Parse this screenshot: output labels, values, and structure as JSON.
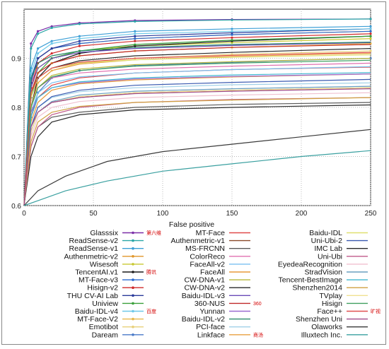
{
  "chart_data": {
    "type": "line",
    "title": "",
    "xlabel": "False positive",
    "ylabel": "",
    "xlim": [
      0,
      250
    ],
    "ylim": [
      0.6,
      1.0
    ],
    "x_ticks": [
      "0",
      "50",
      "100",
      "150",
      "200",
      "250"
    ],
    "y_ticks": [
      "0.6",
      "0.7",
      "0.8",
      "0.9"
    ],
    "grid": true,
    "legend_placement": "bottom (3 columns, below plot)",
    "series": [
      {
        "name": "Glasssix",
        "tag": "第六维",
        "color": "#7b2fa8",
        "x": [
          0,
          5,
          10,
          20,
          40,
          80,
          150,
          250
        ],
        "y": [
          0.6,
          0.93,
          0.955,
          0.965,
          0.972,
          0.977,
          0.979,
          0.98
        ]
      },
      {
        "name": "ReadSense-v2",
        "color": "#2aa6a6",
        "x": [
          0,
          5,
          10,
          20,
          40,
          80,
          150,
          250
        ],
        "y": [
          0.6,
          0.92,
          0.95,
          0.962,
          0.97,
          0.975,
          0.978,
          0.98
        ]
      },
      {
        "name": "ReadSense-v1",
        "color": "#3d9fd6",
        "x": [
          0,
          5,
          10,
          20,
          40,
          80,
          150,
          250
        ],
        "y": [
          0.6,
          0.88,
          0.92,
          0.935,
          0.945,
          0.955,
          0.96,
          0.965
        ]
      },
      {
        "name": "Authenmetric-v2",
        "color": "#e0962a",
        "x": [
          0,
          5,
          10,
          20,
          40,
          80,
          150,
          250
        ],
        "y": [
          0.6,
          0.86,
          0.9,
          0.92,
          0.93,
          0.94,
          0.948,
          0.955
        ]
      },
      {
        "name": "Wisesoft",
        "color": "#c8c832",
        "x": [
          0,
          5,
          10,
          20,
          40,
          80,
          150,
          250
        ],
        "y": [
          0.6,
          0.84,
          0.88,
          0.9,
          0.915,
          0.925,
          0.932,
          0.94
        ]
      },
      {
        "name": "TencentAI.v1",
        "tag": "腾讯",
        "color": "#1a1a1a",
        "x": [
          0,
          5,
          10,
          20,
          40,
          80,
          150,
          250
        ],
        "y": [
          0.6,
          0.8,
          0.86,
          0.89,
          0.91,
          0.925,
          0.935,
          0.945
        ]
      },
      {
        "name": "MT-Face-v3",
        "color": "#2a6ad0",
        "x": [
          0,
          5,
          10,
          20,
          40,
          80,
          150,
          250
        ],
        "y": [
          0.6,
          0.86,
          0.9,
          0.92,
          0.93,
          0.94,
          0.948,
          0.955
        ]
      },
      {
        "name": "Hisign-v2",
        "color": "#d02a2a",
        "x": [
          0,
          5,
          10,
          20,
          40,
          80,
          150,
          250
        ],
        "y": [
          0.6,
          0.84,
          0.89,
          0.91,
          0.925,
          0.935,
          0.942,
          0.95
        ]
      },
      {
        "name": "THU CV-AI Lab",
        "color": "#2a3a9a",
        "x": [
          0,
          5,
          10,
          20,
          40,
          80,
          150,
          250
        ],
        "y": [
          0.6,
          0.85,
          0.9,
          0.92,
          0.935,
          0.945,
          0.952,
          0.96
        ]
      },
      {
        "name": "Uniview",
        "color": "#3aa03a",
        "x": [
          0,
          5,
          10,
          20,
          40,
          80,
          150,
          250
        ],
        "y": [
          0.6,
          0.82,
          0.87,
          0.9,
          0.915,
          0.928,
          0.937,
          0.945
        ]
      },
      {
        "name": "Baidu-IDL-v4",
        "tag": "百度",
        "color": "#6ec8e8",
        "x": [
          0,
          5,
          10,
          20,
          40,
          80,
          150,
          250
        ],
        "y": [
          0.6,
          0.87,
          0.91,
          0.93,
          0.94,
          0.95,
          0.955,
          0.96
        ]
      },
      {
        "name": "MT-Face-V2",
        "color": "#e8b84a",
        "x": [
          0,
          5,
          10,
          20,
          40,
          80,
          150,
          250
        ],
        "y": [
          0.6,
          0.83,
          0.87,
          0.89,
          0.905,
          0.915,
          0.922,
          0.93
        ]
      },
      {
        "name": "Emotibot",
        "color": "#e8d07a",
        "x": [
          0,
          5,
          10,
          20,
          40,
          80,
          150,
          250
        ],
        "y": [
          0.6,
          0.8,
          0.85,
          0.875,
          0.89,
          0.9,
          0.908,
          0.915
        ]
      },
      {
        "name": "Daream",
        "color": "#4a7ac8",
        "x": [
          0,
          5,
          10,
          20,
          40,
          80,
          150,
          250
        ],
        "y": [
          0.6,
          0.78,
          0.83,
          0.86,
          0.875,
          0.885,
          0.892,
          0.9
        ]
      },
      {
        "name": "MT-Face",
        "color": "#e04a4a",
        "x": [
          0,
          5,
          10,
          20,
          40,
          80,
          150,
          250
        ],
        "y": [
          0.6,
          0.78,
          0.82,
          0.845,
          0.86,
          0.87,
          0.877,
          0.882
        ]
      },
      {
        "name": "Authenmetric-v1",
        "color": "#8a4a2a",
        "x": [
          0,
          5,
          10,
          20,
          40,
          80,
          150,
          250
        ],
        "y": [
          0.6,
          0.75,
          0.79,
          0.81,
          0.82,
          0.83,
          0.835,
          0.84
        ]
      },
      {
        "name": "MS-FRCNN",
        "color": "#5a5a5a",
        "x": [
          0,
          5,
          10,
          20,
          40,
          80,
          150,
          250
        ],
        "y": [
          0.6,
          0.72,
          0.76,
          0.78,
          0.79,
          0.8,
          0.806,
          0.81
        ]
      },
      {
        "name": "ColorReco",
        "color": "#e070b0",
        "x": [
          0,
          5,
          10,
          20,
          40,
          80,
          150,
          250
        ],
        "y": [
          0.6,
          0.8,
          0.84,
          0.86,
          0.87,
          0.878,
          0.884,
          0.89
        ]
      },
      {
        "name": "FaceAll-v2",
        "color": "#7ac0f0",
        "x": [
          0,
          5,
          10,
          20,
          40,
          80,
          150,
          250
        ],
        "y": [
          0.6,
          0.79,
          0.83,
          0.85,
          0.862,
          0.87,
          0.877,
          0.883
        ]
      },
      {
        "name": "FaceAll",
        "color": "#e89a3a",
        "x": [
          0,
          5,
          10,
          20,
          40,
          80,
          150,
          250
        ],
        "y": [
          0.6,
          0.77,
          0.81,
          0.835,
          0.848,
          0.856,
          0.862,
          0.868
        ]
      },
      {
        "name": "CW-DNA-v1",
        "color": "#b8b83a",
        "x": [
          0,
          5,
          10,
          20,
          40,
          80,
          150,
          250
        ],
        "y": [
          0.6,
          0.8,
          0.84,
          0.865,
          0.878,
          0.887,
          0.893,
          0.9
        ]
      },
      {
        "name": "CW-DNA-v2",
        "color": "#2a2a2a",
        "x": [
          0,
          5,
          10,
          20,
          40,
          80,
          150,
          250
        ],
        "y": [
          0.6,
          0.82,
          0.86,
          0.88,
          0.895,
          0.905,
          0.912,
          0.92
        ]
      },
      {
        "name": "Baidu-IDL-v3",
        "color": "#6a4ab8",
        "x": [
          0,
          5,
          10,
          20,
          40,
          80,
          150,
          250
        ],
        "y": [
          0.6,
          0.84,
          0.88,
          0.9,
          0.912,
          0.92,
          0.926,
          0.932
        ]
      },
      {
        "name": "360-NUS",
        "tag": "360",
        "color": "#c02a2a",
        "x": [
          0,
          5,
          10,
          20,
          40,
          80,
          150,
          250
        ],
        "y": [
          0.6,
          0.83,
          0.87,
          0.89,
          0.905,
          0.915,
          0.922,
          0.928
        ]
      },
      {
        "name": "Yunnan",
        "color": "#9a6ad0",
        "x": [
          0,
          5,
          10,
          20,
          40,
          80,
          150,
          250
        ],
        "y": [
          0.6,
          0.79,
          0.82,
          0.84,
          0.85,
          0.858,
          0.863,
          0.868
        ]
      },
      {
        "name": "Baidu-IDL-v2",
        "color": "#2a8a6a",
        "x": [
          0,
          5,
          10,
          20,
          40,
          80,
          150,
          250
        ],
        "y": [
          0.6,
          0.86,
          0.89,
          0.905,
          0.915,
          0.922,
          0.928,
          0.933
        ]
      },
      {
        "name": "PCI-face",
        "color": "#a0d0e8",
        "x": [
          0,
          5,
          10,
          20,
          40,
          80,
          150,
          250
        ],
        "y": [
          0.6,
          0.76,
          0.8,
          0.82,
          0.832,
          0.84,
          0.846,
          0.85
        ]
      },
      {
        "name": "Linkface",
        "tag": "商汤",
        "color": "#e8a040",
        "x": [
          0,
          5,
          10,
          20,
          40,
          80,
          150,
          250
        ],
        "y": [
          0.6,
          0.8,
          0.85,
          0.875,
          0.888,
          0.897,
          0.904,
          0.91
        ]
      },
      {
        "name": "Baidu-IDL",
        "color": "#e0e070",
        "x": [
          0,
          5,
          10,
          20,
          40,
          80,
          150,
          250
        ],
        "y": [
          0.6,
          0.82,
          0.86,
          0.88,
          0.89,
          0.897,
          0.902,
          0.907
        ]
      },
      {
        "name": "Uni-Ubi-2",
        "color": "#3a5ab0",
        "x": [
          0,
          5,
          10,
          20,
          40,
          80,
          150,
          250
        ],
        "y": [
          0.6,
          0.76,
          0.8,
          0.822,
          0.835,
          0.845,
          0.851,
          0.857
        ]
      },
      {
        "name": "IMC Lab",
        "color": "#2a2a2a",
        "x": [
          0,
          5,
          10,
          20,
          40,
          80,
          150,
          250
        ],
        "y": [
          0.6,
          0.7,
          0.74,
          0.77,
          0.785,
          0.795,
          0.8,
          0.805
        ]
      },
      {
        "name": "Uni-Ubi",
        "color": "#c05a8a",
        "x": [
          0,
          5,
          10,
          20,
          40,
          80,
          150,
          250
        ],
        "y": [
          0.6,
          0.72,
          0.76,
          0.785,
          0.8,
          0.81,
          0.816,
          0.82
        ]
      },
      {
        "name": "EyedeaRecognition",
        "color": "#f0c0d0",
        "x": [
          0,
          5,
          10,
          20,
          40,
          80,
          150,
          250
        ],
        "y": [
          0.6,
          0.74,
          0.78,
          0.8,
          0.812,
          0.82,
          0.825,
          0.83
        ]
      },
      {
        "name": "StradVision",
        "color": "#6aa0c0",
        "x": [
          0,
          5,
          10,
          20,
          40,
          80,
          150,
          250
        ],
        "y": [
          0.6,
          0.75,
          0.79,
          0.812,
          0.825,
          0.833,
          0.838,
          0.843
        ]
      },
      {
        "name": "Tencent-BestImage",
        "color": "#40b8d0",
        "x": [
          0,
          5,
          10,
          20,
          40,
          80,
          150,
          250
        ],
        "y": [
          0.6,
          0.78,
          0.82,
          0.84,
          0.852,
          0.86,
          0.866,
          0.871
        ]
      },
      {
        "name": "Shenzhen2014",
        "color": "#d0a040",
        "x": [
          0,
          5,
          10,
          20,
          40,
          80,
          150,
          250
        ],
        "y": [
          0.6,
          0.73,
          0.77,
          0.79,
          0.802,
          0.81,
          0.815,
          0.82
        ]
      },
      {
        "name": "TVplay",
        "color": "#f0e090",
        "x": [
          0,
          5,
          10,
          20,
          40,
          80,
          150,
          250
        ],
        "y": [
          0.6,
          0.75,
          0.79,
          0.81,
          0.822,
          0.83,
          0.835,
          0.84
        ]
      },
      {
        "name": "Hisign",
        "color": "#40a060",
        "x": [
          0,
          5,
          10,
          20,
          40,
          80,
          150,
          250
        ],
        "y": [
          0.6,
          0.8,
          0.84,
          0.862,
          0.875,
          0.884,
          0.89,
          0.896
        ]
      },
      {
        "name": "Face++",
        "tag": "旷视",
        "color": "#e05050",
        "x": [
          0,
          5,
          10,
          20,
          40,
          80,
          150,
          250
        ],
        "y": [
          0.6,
          0.83,
          0.86,
          0.88,
          0.892,
          0.9,
          0.906,
          0.912
        ]
      },
      {
        "name": "Shenzhen Uni",
        "color": "#a04a8a",
        "x": [
          0,
          5,
          10,
          20,
          40,
          80,
          150,
          250
        ],
        "y": [
          0.6,
          0.76,
          0.79,
          0.81,
          0.82,
          0.828,
          0.833,
          0.838
        ]
      },
      {
        "name": "Olaworks",
        "color": "#3a3a3a",
        "x": [
          0,
          10,
          30,
          60,
          100,
          150,
          200,
          250
        ],
        "y": [
          0.6,
          0.63,
          0.66,
          0.69,
          0.71,
          0.725,
          0.74,
          0.755
        ]
      },
      {
        "name": "Illuxtech Inc.",
        "color": "#3aa0a0",
        "x": [
          0,
          10,
          30,
          60,
          100,
          150,
          200,
          250
        ],
        "y": [
          0.6,
          0.61,
          0.63,
          0.65,
          0.67,
          0.685,
          0.7,
          0.712
        ]
      }
    ]
  }
}
